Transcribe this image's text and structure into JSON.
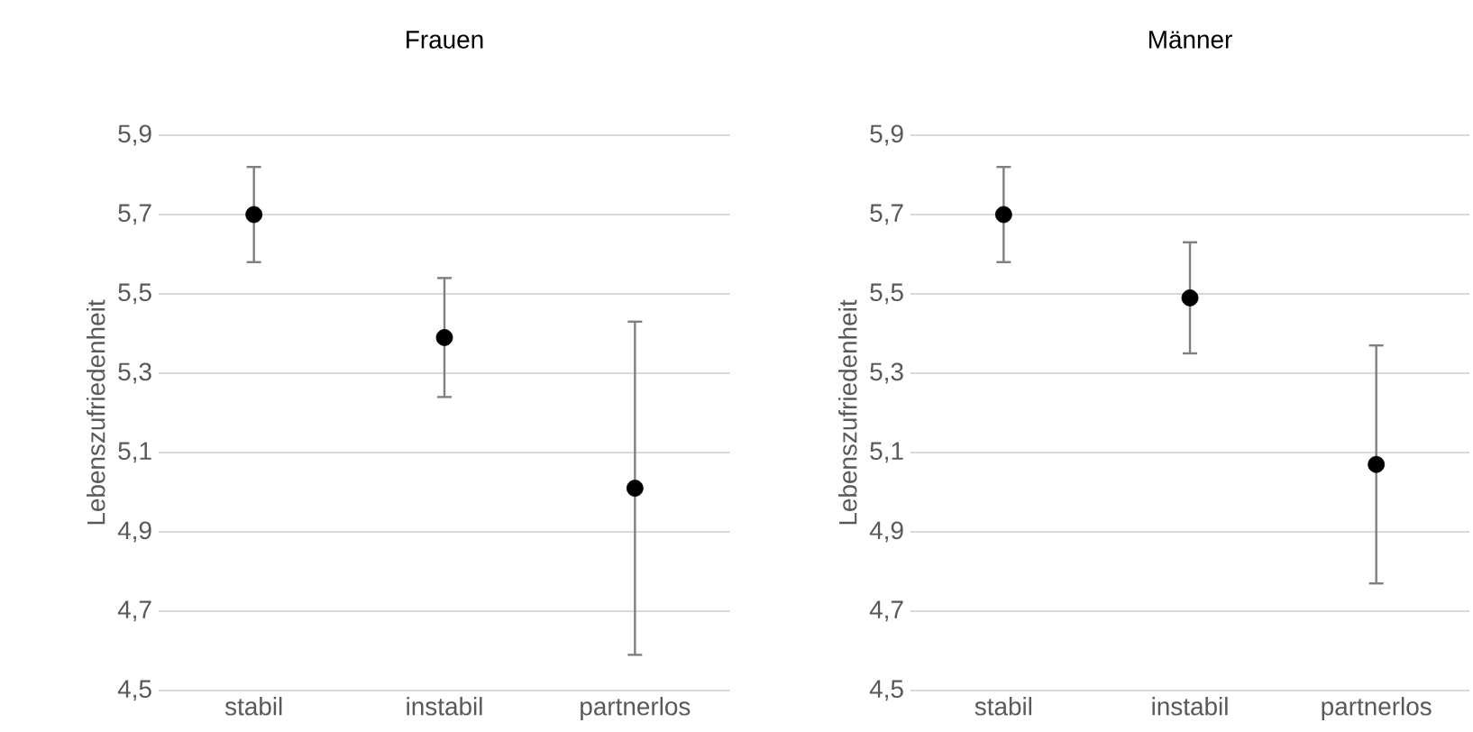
{
  "chart_data": [
    {
      "type": "scatter",
      "title": "Frauen",
      "ylabel": "Lebenszufriedenheit",
      "categories": [
        "stabil",
        "instabil",
        "partnerlos"
      ],
      "series": [
        {
          "color": "#000000",
          "values": [
            5.7,
            5.39,
            5.01
          ],
          "errors": [
            0.12,
            0.15,
            0.42
          ]
        }
      ],
      "ylim": [
        4.5,
        5.9
      ],
      "yticks": [
        {
          "value": 4.5,
          "label": "4,5"
        },
        {
          "value": 4.7,
          "label": "4,7"
        },
        {
          "value": 4.9,
          "label": "4,9"
        },
        {
          "value": 5.1,
          "label": "5,1"
        },
        {
          "value": 5.3,
          "label": "5,3"
        },
        {
          "value": 5.5,
          "label": "5,5"
        },
        {
          "value": 5.7,
          "label": "5,7"
        },
        {
          "value": 5.9,
          "label": "5,9"
        }
      ],
      "grid": "y",
      "marker": "circle"
    },
    {
      "type": "scatter",
      "title": "Männer",
      "ylabel": "Lebenszufriedenheit",
      "categories": [
        "stabil",
        "instabil",
        "partnerlos"
      ],
      "series": [
        {
          "color": "#000000",
          "values": [
            5.7,
            5.49,
            5.07
          ],
          "errors": [
            0.12,
            0.14,
            0.3
          ]
        }
      ],
      "ylim": [
        4.5,
        5.9
      ],
      "yticks": [
        {
          "value": 4.5,
          "label": "4,5"
        },
        {
          "value": 4.7,
          "label": "4,7"
        },
        {
          "value": 4.9,
          "label": "4,9"
        },
        {
          "value": 5.1,
          "label": "5,1"
        },
        {
          "value": 5.3,
          "label": "5,3"
        },
        {
          "value": 5.5,
          "label": "5,5"
        },
        {
          "value": 5.7,
          "label": "5,7"
        },
        {
          "value": 5.9,
          "label": "5,9"
        }
      ],
      "grid": "y",
      "marker": "circle"
    }
  ]
}
